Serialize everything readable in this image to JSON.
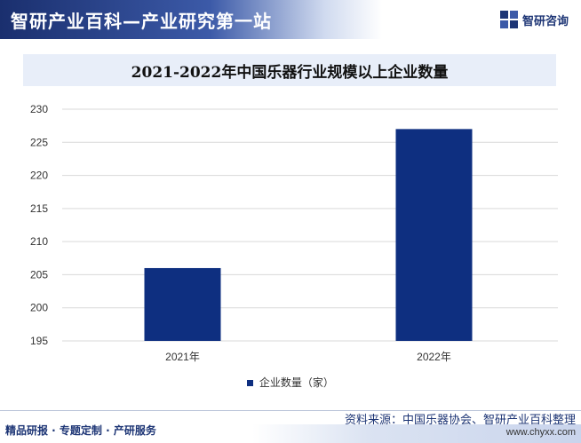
{
  "header": {
    "title": "智研产业百科—产业研究第一站",
    "brand": "智研咨询"
  },
  "chart_data": {
    "type": "bar",
    "title": "2021-2022年中国乐器行业规模以上企业数量",
    "categories": [
      "2021年",
      "2022年"
    ],
    "series": [
      {
        "name": "企业数量（家）",
        "values": [
          206,
          227
        ]
      }
    ],
    "ylim": [
      195,
      230
    ],
    "yticks": [
      195,
      200,
      205,
      210,
      215,
      220,
      225,
      230
    ],
    "grid": true,
    "legend": "bottom",
    "bar_color": "#0e2f80"
  },
  "footer": {
    "left": "精品研报 · 专题定制 · 产研服务",
    "source": "资料来源：中国乐器协会、智研产业百科整理",
    "url": "www.chyxx.com"
  }
}
